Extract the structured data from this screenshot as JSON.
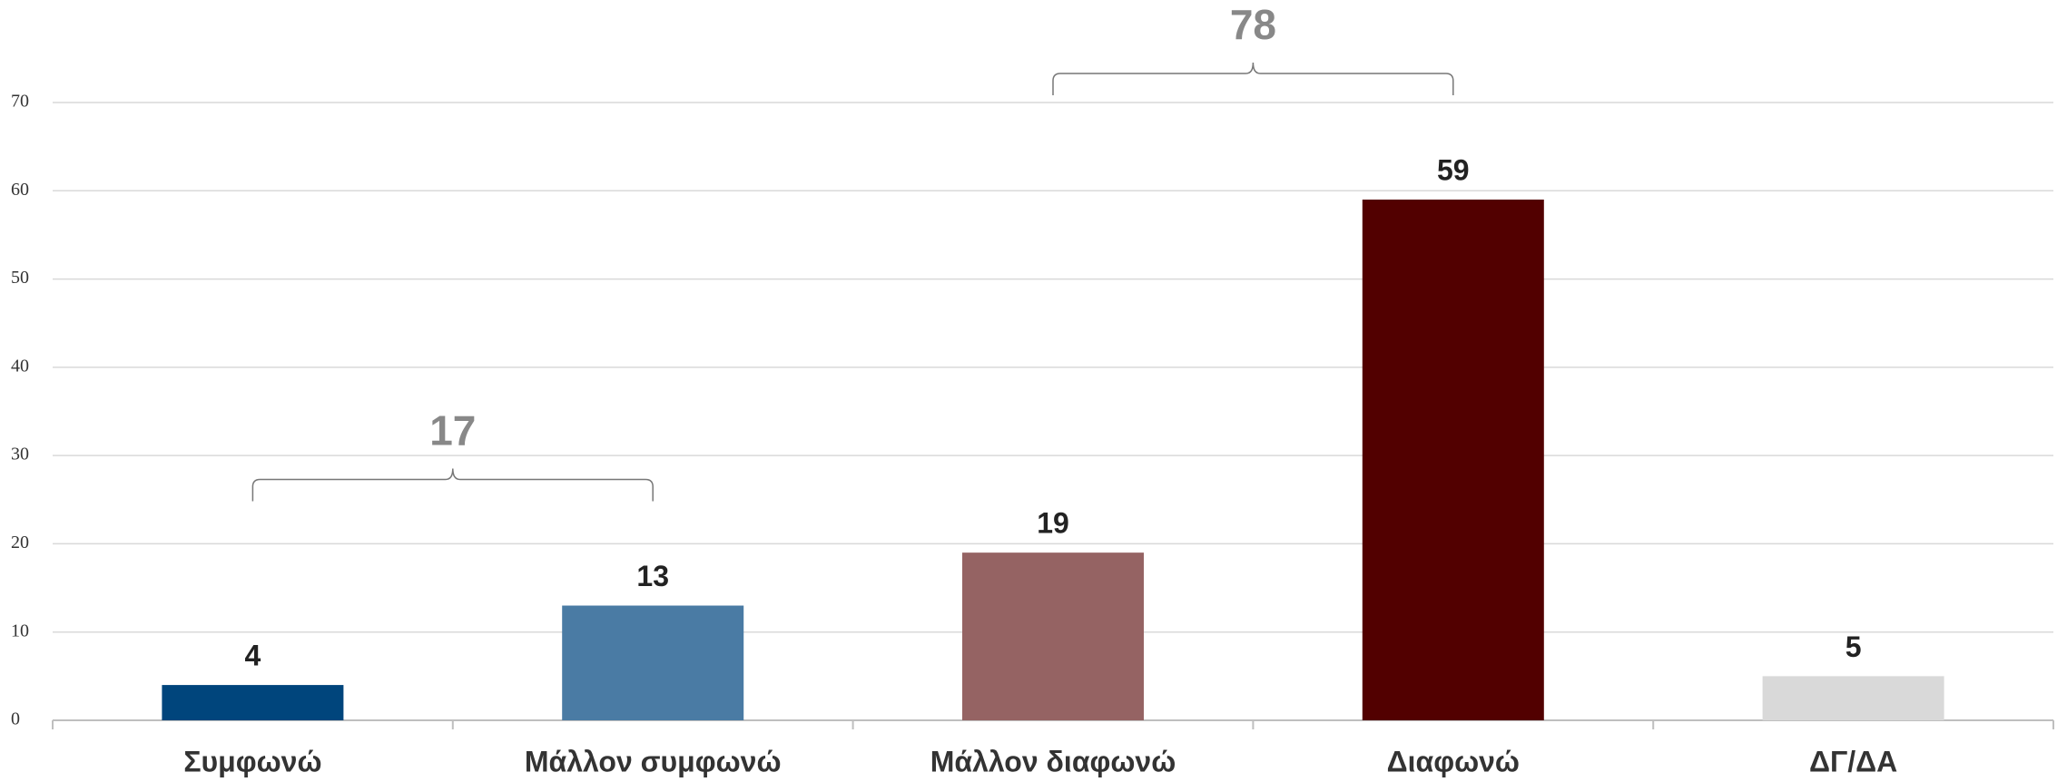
{
  "chart_data": {
    "type": "bar",
    "categories": [
      "Συμφωνώ",
      "Μάλλον συμφωνώ",
      "Μάλλον διαφωνώ",
      "Διαφωνώ",
      "ΔΓ/ΔΑ"
    ],
    "values": [
      4,
      13,
      19,
      59,
      5
    ],
    "colors": [
      "#00457c",
      "#4a7ba4",
      "#956363",
      "#520000",
      "#d9d9d9"
    ],
    "ylim": [
      0,
      70
    ],
    "yticks": [
      0,
      10,
      20,
      30,
      40,
      50,
      60,
      70
    ],
    "grid": true,
    "groups": [
      {
        "value": 17,
        "categories": [
          "Συμφωνώ",
          "Μάλλον συμφωνώ"
        ]
      },
      {
        "value": 78,
        "categories": [
          "Μάλλον διαφωνώ",
          "Διαφωνώ"
        ]
      }
    ]
  }
}
